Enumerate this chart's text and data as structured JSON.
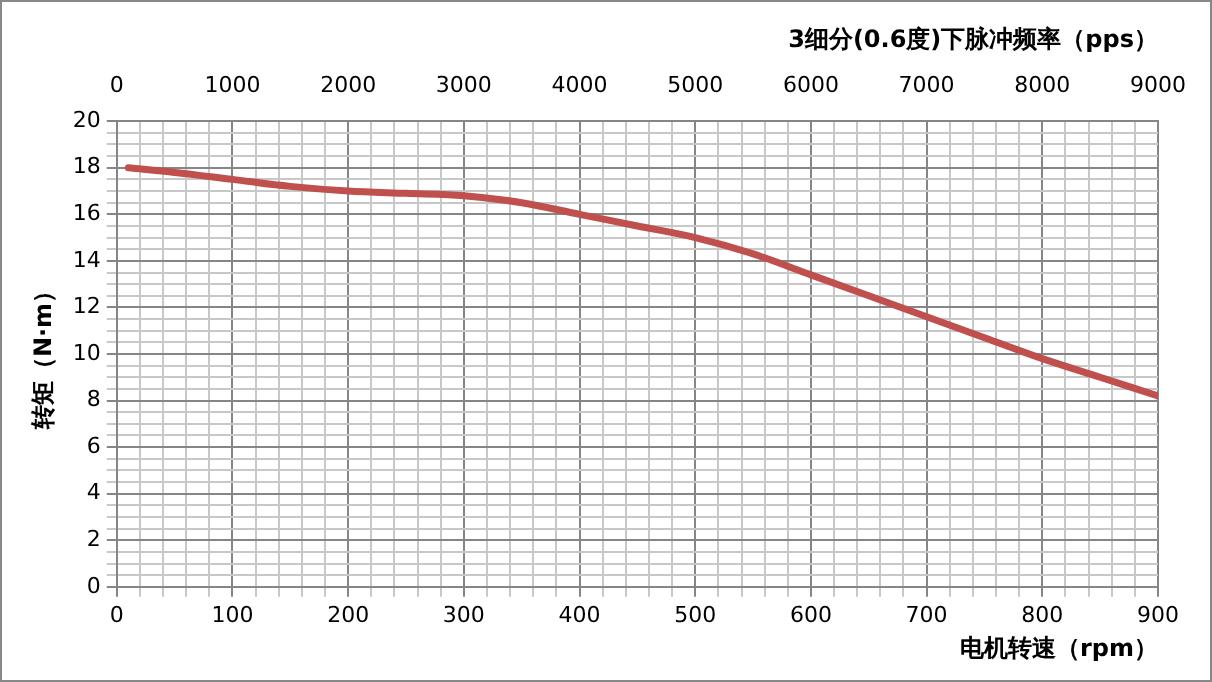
{
  "chart_data": {
    "type": "line",
    "x2label": "3细分(0.6度)下脉冲频率（pps）",
    "xlabel": "电机转速（rpm）",
    "ylabel": "转矩（N·m）",
    "x": [
      10,
      50,
      100,
      150,
      200,
      250,
      300,
      350,
      400,
      450,
      500,
      550,
      600,
      650,
      700,
      750,
      800,
      850,
      900
    ],
    "series": [
      {
        "color": "#c0504d",
        "values": [
          18,
          17.8,
          17.5,
          17.2,
          17,
          16.9,
          16.8,
          16.5,
          16,
          15.5,
          15,
          14.3,
          13.4,
          12.5,
          11.6,
          10.7,
          9.8,
          9,
          8.2
        ]
      }
    ],
    "xlim": [
      0,
      900
    ],
    "xticks": [
      0,
      {
        "value": 20,
        "label": null
      },
      {
        "value": 40,
        "label": null
      },
      {
        "value": 60,
        "label": null
      },
      {
        "value": 80,
        "label": null
      },
      100,
      {
        "value": 120,
        "label": null
      },
      {
        "value": 140,
        "label": null
      },
      {
        "value": 160,
        "label": null
      },
      {
        "value": 180,
        "label": null
      },
      200,
      {
        "value": 220,
        "label": null
      },
      {
        "value": 240,
        "label": null
      },
      {
        "value": 260,
        "label": null
      },
      {
        "value": 280,
        "label": null
      },
      300,
      {
        "value": 320,
        "label": null
      },
      {
        "value": 340,
        "label": null
      },
      {
        "value": 360,
        "label": null
      },
      {
        "value": 380,
        "label": null
      },
      400,
      {
        "value": 420,
        "label": null
      },
      {
        "value": 440,
        "label": null
      },
      {
        "value": 460,
        "label": null
      },
      {
        "value": 480,
        "label": null
      },
      500,
      {
        "value": 520,
        "label": null
      },
      {
        "value": 540,
        "label": null
      },
      {
        "value": 560,
        "label": null
      },
      {
        "value": 580,
        "label": null
      },
      600,
      {
        "value": 620,
        "label": null
      },
      {
        "value": 640,
        "label": null
      },
      {
        "value": 660,
        "label": null
      },
      {
        "value": 680,
        "label": null
      },
      700,
      {
        "value": 720,
        "label": null
      },
      {
        "value": 740,
        "label": null
      },
      {
        "value": 760,
        "label": null
      },
      {
        "value": 780,
        "label": null
      },
      800,
      {
        "value": 820,
        "label": null
      },
      {
        "value": 840,
        "label": null
      },
      {
        "value": 860,
        "label": null
      },
      {
        "value": 880,
        "label": null
      },
      900
    ],
    "ylim": [
      0,
      20
    ],
    "yticks": [
      0,
      {
        "value": 0.5,
        "label": null
      },
      {
        "value": 1,
        "label": null
      },
      {
        "value": 1.5,
        "label": null
      },
      2,
      {
        "value": 2.5,
        "label": null
      },
      {
        "value": 3,
        "label": null
      },
      {
        "value": 3.5,
        "label": null
      },
      4,
      {
        "value": 4.5,
        "label": null
      },
      {
        "value": 5,
        "label": null
      },
      {
        "value": 5.5,
        "label": null
      },
      6,
      {
        "value": 6.5,
        "label": null
      },
      {
        "value": 7,
        "label": null
      },
      {
        "value": 7.5,
        "label": null
      },
      8,
      {
        "value": 8.5,
        "label": null
      },
      {
        "value": 9,
        "label": null
      },
      {
        "value": 9.5,
        "label": null
      },
      10,
      {
        "value": 10.5,
        "label": null
      },
      {
        "value": 11,
        "label": null
      },
      {
        "value": 11.5,
        "label": null
      },
      12,
      {
        "value": 12.5,
        "label": null
      },
      {
        "value": 13,
        "label": null
      },
      {
        "value": 13.5,
        "label": null
      },
      14,
      {
        "value": 14.5,
        "label": null
      },
      {
        "value": 15,
        "label": null
      },
      {
        "value": 15.5,
        "label": null
      },
      16,
      {
        "value": 16.5,
        "label": null
      },
      {
        "value": 17,
        "label": null
      },
      {
        "value": 17.5,
        "label": null
      },
      18,
      {
        "value": 18.5,
        "label": null
      },
      {
        "value": 19,
        "label": null
      },
      {
        "value": 19.5,
        "label": null
      },
      20
    ],
    "x2lim": [
      0,
      9000
    ],
    "x2ticks": [
      0,
      1000,
      2000,
      3000,
      4000,
      5000,
      6000,
      7000,
      8000,
      9000
    ],
    "grid": true,
    "marker": "none",
    "line_style": "solid"
  }
}
